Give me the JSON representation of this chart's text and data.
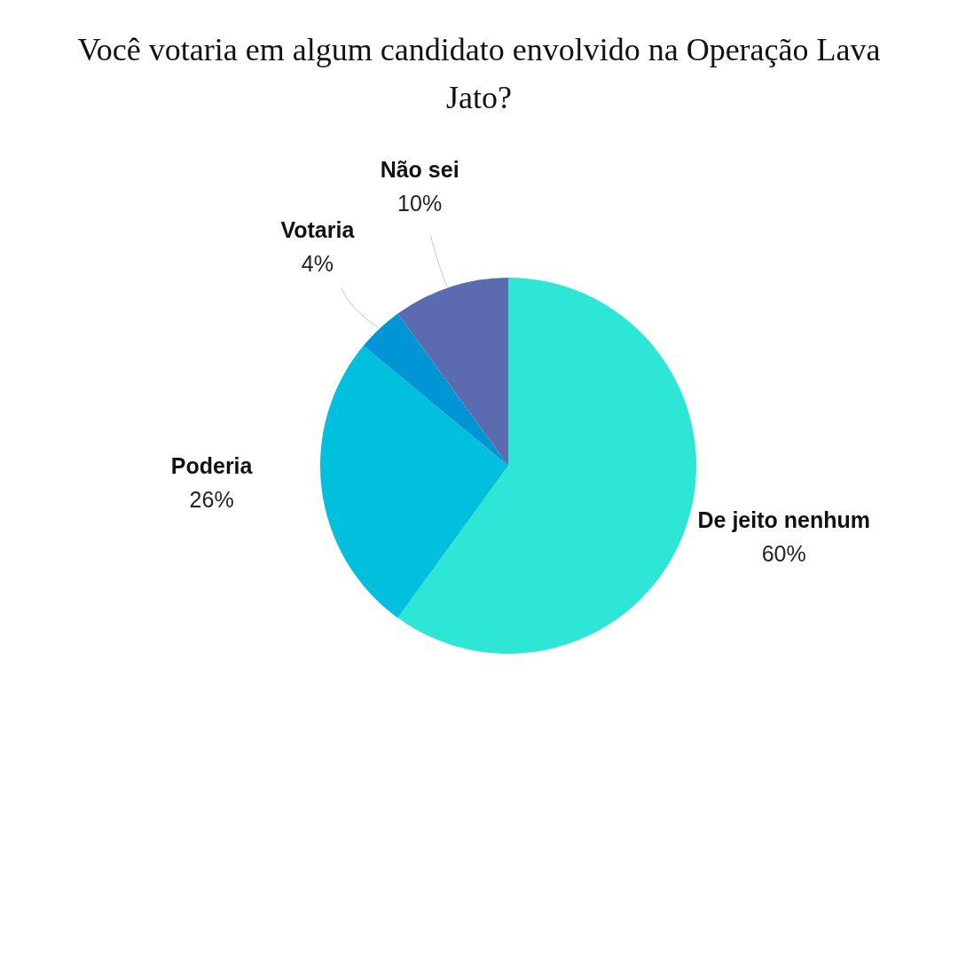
{
  "chart_data": {
    "type": "pie",
    "title": "Você votaria em algum candidato envolvido na Operação Lava Jato?",
    "categories": [
      "De jeito nenhum",
      "Poderia",
      "Votaria",
      "Não sei"
    ],
    "values": [
      60,
      26,
      4,
      10
    ],
    "colors": [
      "#2ee6d6",
      "#00c0de",
      "#0096d6",
      "#5a6bb0"
    ],
    "value_labels": [
      "60%",
      "26%",
      "4%",
      "10%"
    ]
  }
}
